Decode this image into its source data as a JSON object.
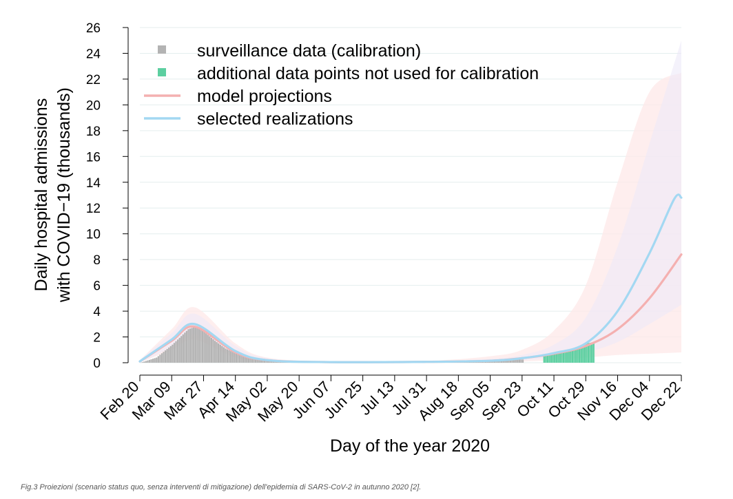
{
  "chart_data": {
    "type": "line",
    "xlabel": "Day of the year 2020",
    "ylabel_lines": [
      "Daily hospital admissions",
      "with COVID−19 (thousands)"
    ],
    "ylim": [
      0,
      26
    ],
    "yticks": [
      0,
      2,
      4,
      6,
      8,
      10,
      12,
      14,
      16,
      18,
      20,
      22,
      24,
      26
    ],
    "x_tick_labels": [
      "Feb 20",
      "Mar 09",
      "Mar 27",
      "Apr 14",
      "May 02",
      "May 20",
      "Jun 07",
      "Jun 25",
      "Jul 13",
      "Jul 31",
      "Aug 18",
      "Sep 05",
      "Sep 23",
      "Oct 11",
      "Oct 29",
      "Nov 16",
      "Dec 04",
      "Dec 22"
    ],
    "grid": true,
    "legend_position": "top-left",
    "legend": [
      {
        "label": "surveillance data (calibration)",
        "kind": "square",
        "color": "#b3b3b3"
      },
      {
        "label": "additional data points not used for calibration",
        "kind": "square",
        "color": "#5ccfa0"
      },
      {
        "label": "model projections",
        "kind": "line",
        "color": "#f4b0b0"
      },
      {
        "label": "selected realizations",
        "kind": "line",
        "color": "#a3d8f2"
      }
    ],
    "colors": {
      "surveillance": "#b3b3b3",
      "additional": "#5ccfa0",
      "projection_line": "#f4b0b0",
      "projection_band": "#fde8e8",
      "realization_line": "#a3d8f2",
      "realization_band": "#ece9f8"
    },
    "series": [
      {
        "name": "surveillance data (calibration)",
        "kind": "bars",
        "x": [
          "Feb 20",
          "Feb 29",
          "Mar 09",
          "Mar 18",
          "Mar 22",
          "Mar 27",
          "Apr 02",
          "Apr 08",
          "Apr 14",
          "Apr 23",
          "May 02",
          "May 20",
          "Jun 07",
          "Jul 13",
          "Aug 18",
          "Sep 05",
          "Sep 23"
        ],
        "y": [
          0.0,
          0.4,
          1.4,
          2.6,
          2.8,
          2.4,
          1.7,
          1.1,
          0.7,
          0.4,
          0.2,
          0.08,
          0.05,
          0.05,
          0.08,
          0.15,
          0.25
        ]
      },
      {
        "name": "additional data points not used for calibration",
        "kind": "bars",
        "x": [
          "Oct 05",
          "Oct 11",
          "Oct 17",
          "Oct 23",
          "Oct 29",
          "Nov 02"
        ],
        "y": [
          0.5,
          0.7,
          0.9,
          1.2,
          1.5,
          1.6
        ]
      },
      {
        "name": "model projections",
        "kind": "line",
        "x": [
          "Feb 20",
          "Mar 09",
          "Mar 22",
          "Apr 14",
          "May 02",
          "Jun 07",
          "Jul 31",
          "Sep 05",
          "Sep 23",
          "Oct 11",
          "Oct 29",
          "Nov 16",
          "Dec 04",
          "Dec 22"
        ],
        "y": [
          0.1,
          1.7,
          2.8,
          0.8,
          0.2,
          0.05,
          0.07,
          0.15,
          0.35,
          0.7,
          1.3,
          2.6,
          5.0,
          8.4
        ]
      },
      {
        "name": "selected realizations",
        "kind": "line",
        "x": [
          "Feb 20",
          "Mar 09",
          "Mar 22",
          "Apr 14",
          "May 02",
          "Jun 07",
          "Jul 31",
          "Sep 05",
          "Sep 23",
          "Oct 11",
          "Oct 29",
          "Nov 16",
          "Dec 04",
          "Dec 18",
          "Dec 22"
        ],
        "y": [
          0.1,
          1.8,
          3.0,
          0.9,
          0.2,
          0.05,
          0.07,
          0.15,
          0.35,
          0.75,
          1.5,
          4.0,
          8.5,
          12.7,
          12.8
        ]
      }
    ],
    "bands": [
      {
        "name": "model projections range",
        "x": [
          "Feb 20",
          "Mar 09",
          "Mar 22",
          "Apr 14",
          "May 02",
          "Jun 07",
          "Jul 31",
          "Sep 05",
          "Sep 23",
          "Oct 11",
          "Oct 29",
          "Nov 16",
          "Dec 04",
          "Dec 22"
        ],
        "lower": [
          0.0,
          1.0,
          1.8,
          0.4,
          0.1,
          0.02,
          0.03,
          0.05,
          0.1,
          0.2,
          0.4,
          0.6,
          0.7,
          0.8
        ],
        "upper": [
          0.2,
          2.6,
          4.3,
          1.5,
          0.4,
          0.1,
          0.15,
          0.5,
          1.0,
          2.5,
          6.0,
          14.0,
          21.0,
          22.5
        ]
      },
      {
        "name": "selected realizations range",
        "x": [
          "Feb 20",
          "Mar 09",
          "Mar 22",
          "Apr 14",
          "May 02",
          "Jun 07",
          "Jul 31",
          "Sep 05",
          "Sep 23",
          "Oct 11",
          "Oct 29",
          "Nov 16",
          "Dec 04",
          "Dec 22"
        ],
        "lower": [
          0.0,
          1.2,
          2.2,
          0.6,
          0.1,
          0.03,
          0.04,
          0.1,
          0.2,
          0.4,
          0.8,
          1.6,
          3.0,
          4.5
        ],
        "upper": [
          0.2,
          2.3,
          3.8,
          1.3,
          0.35,
          0.08,
          0.12,
          0.3,
          0.6,
          1.4,
          3.5,
          9.0,
          17.0,
          25.0
        ]
      }
    ]
  },
  "caption": "Fig.3 Proiezioni (scenario status quo, senza interventi di mitigazione) dell'epidemia di SARS-CoV-2 in autunno 2020 [2]."
}
